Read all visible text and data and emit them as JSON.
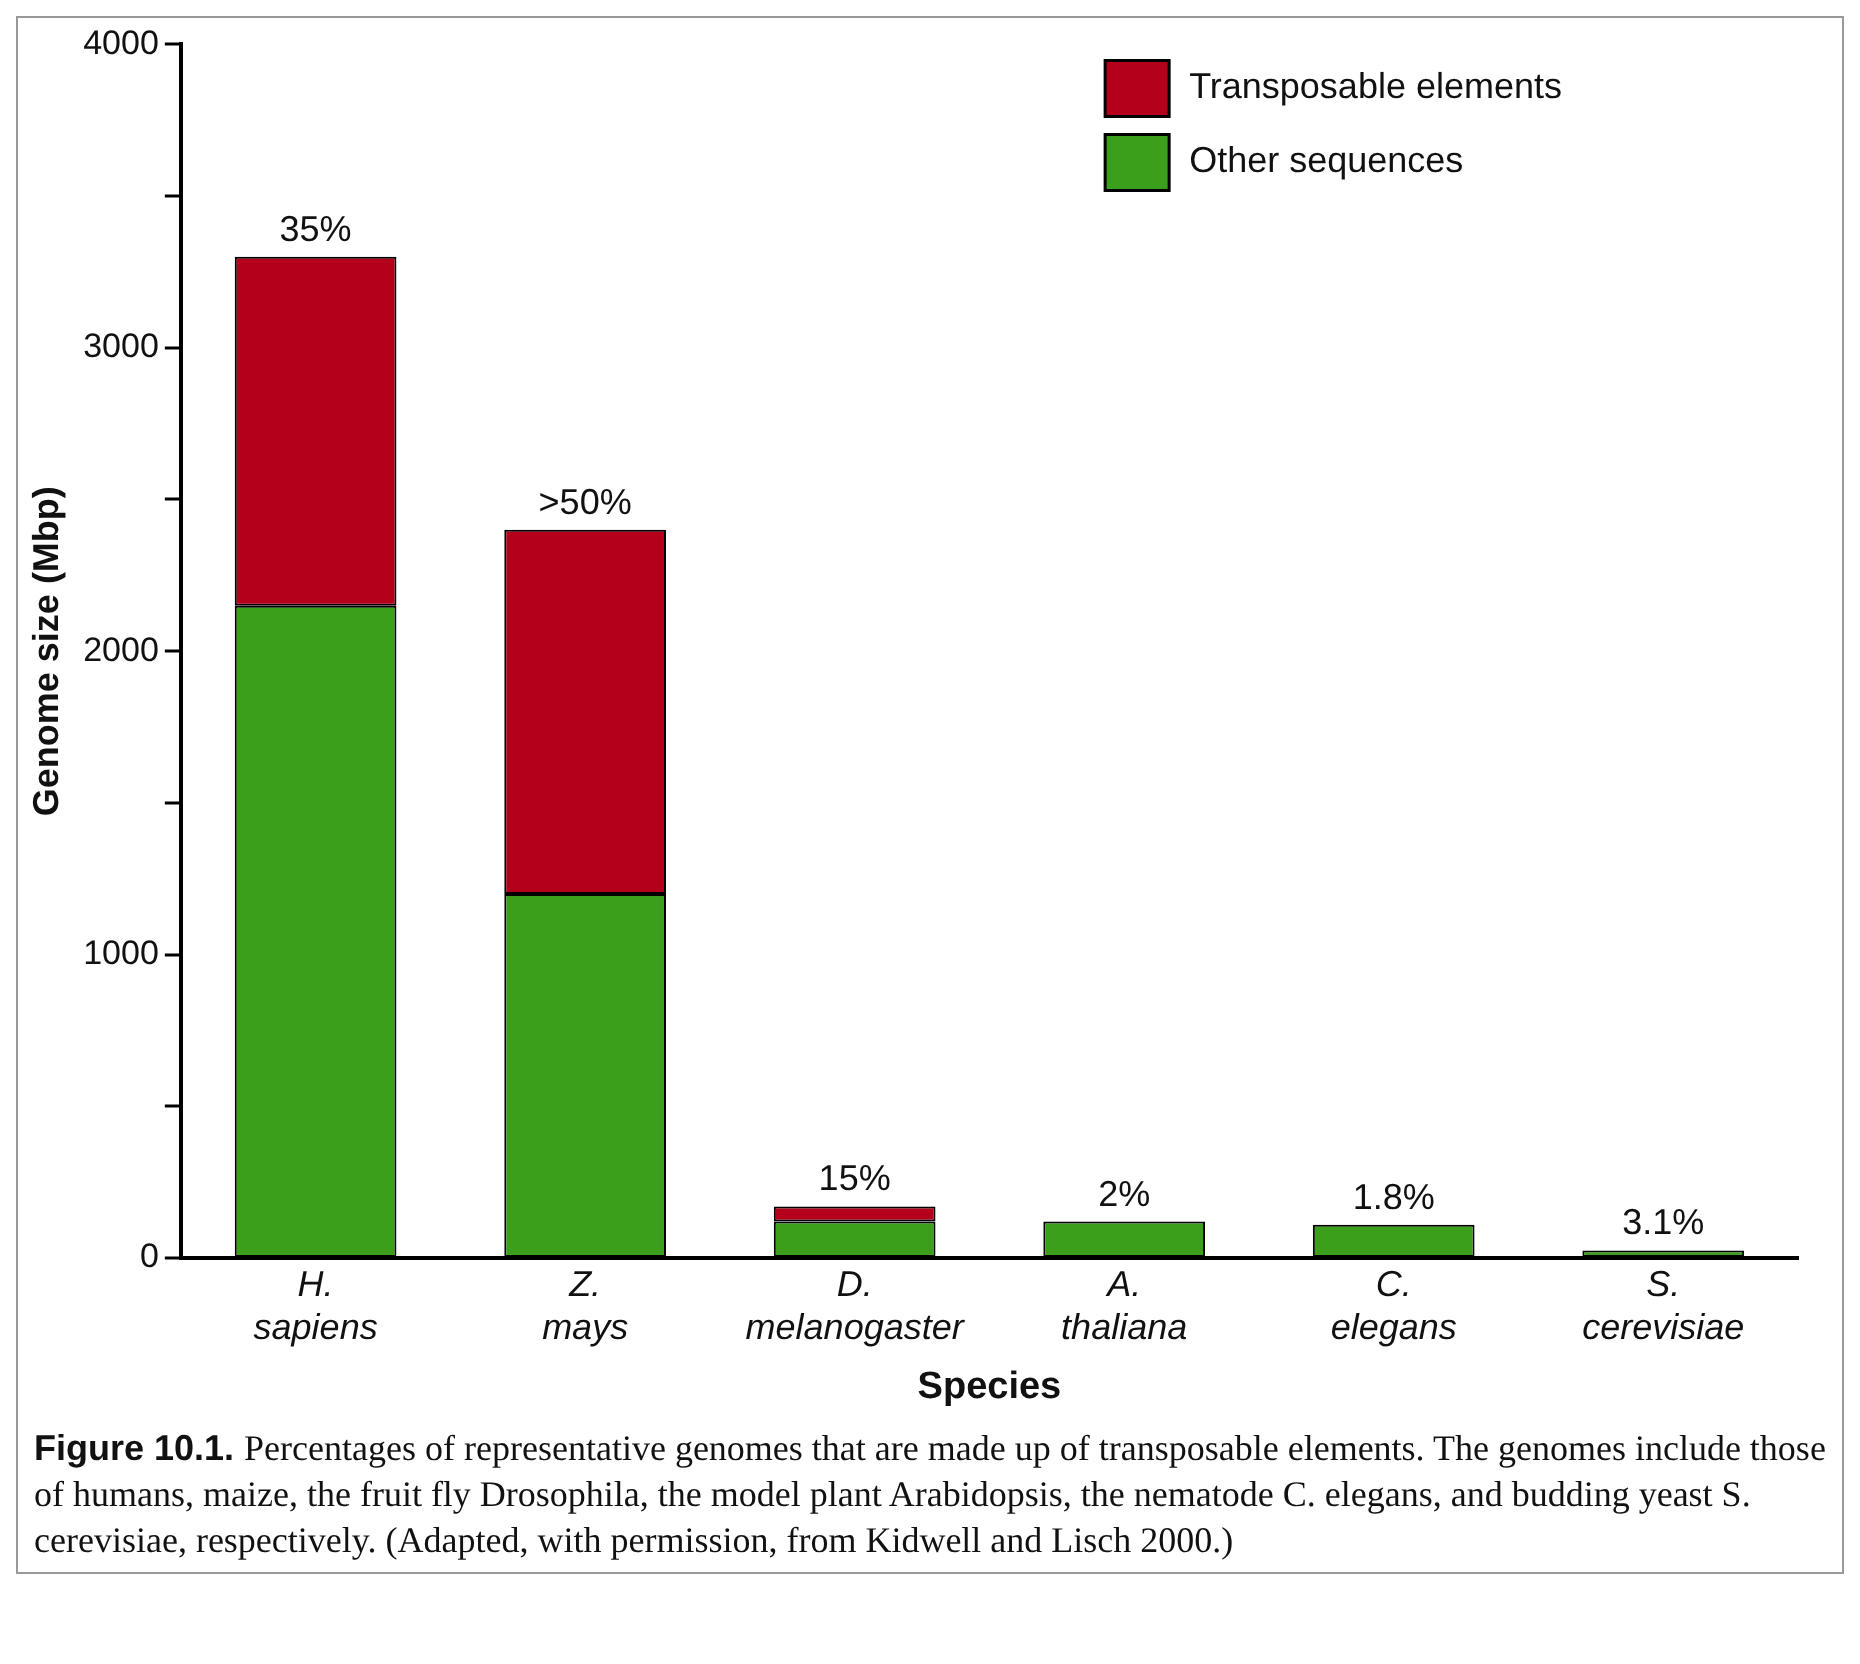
{
  "chart_data": {
    "type": "bar",
    "stacked": true,
    "xlabel": "Species",
    "ylabel": "Genome size (Mbp)",
    "categories": [
      "H. sapiens",
      "Z. mays",
      "D. melanogaster",
      "A. thaliana",
      "C. elegans",
      "S. cerevisiae"
    ],
    "series": [
      {
        "name": "Other sequences",
        "color": "#3c9f1c",
        "values": [
          2150,
          1200,
          120,
          120,
          110,
          25
        ]
      },
      {
        "name": "Transposable elements",
        "color": "#b5001c",
        "values": [
          1150,
          1200,
          50,
          null,
          null,
          null
        ]
      }
    ],
    "ylim": [
      0,
      4000
    ],
    "yticks": [
      0,
      {
        "value": 500,
        "label": null
      },
      1000,
      {
        "value": 1500,
        "label": null
      },
      2000,
      {
        "value": 2500,
        "label": null
      },
      3000,
      {
        "value": 3500,
        "label": null
      },
      4000
    ],
    "grid": false,
    "legend": "top right",
    "annotations": [
      {
        "text": "35%",
        "x": "H. sapiens",
        "y": 3300
      },
      {
        "text": ">50%",
        "x": "Z. mays",
        "y": 2400
      },
      {
        "text": "15%",
        "x": "D. melanogaster",
        "y": 170
      },
      {
        "text": "2%",
        "x": "A. thaliana",
        "y": 120
      },
      {
        "text": "1.8%",
        "x": "C. elegans",
        "y": 110
      },
      {
        "text": "3.1%",
        "x": "S. cerevisiae",
        "y": 25
      },
      "Figure 10.1.",
      "Percentages of representative genomes that are made up of transposable elements. The genomes include those of humans, maize, the fruit fly Drosophila, the model plant Arabidopsis, the nematode C. elegans, and budding yeast S. cerevisiae, respectively. (Adapted, with permission, from Kidwell and Lisch 2000.)"
    ]
  }
}
